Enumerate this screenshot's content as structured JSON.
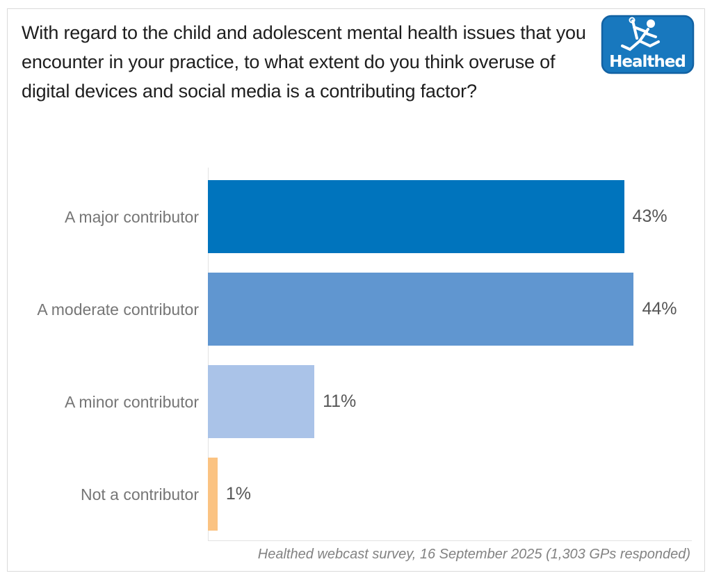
{
  "logo": {
    "text": "Healthed",
    "bg_color": "#1878be",
    "icon": "hermes-runner-icon"
  },
  "chart_data": {
    "type": "bar",
    "orientation": "horizontal",
    "title": "With regard to the child and adolescent mental health issues that you encounter in your practice, to what extent do you think overuse of digital devices and social media is a contributing factor?",
    "categories": [
      "A major contributor",
      "A moderate contributor",
      "A minor contributor",
      "Not a contributor"
    ],
    "values": [
      43,
      44,
      11,
      1
    ],
    "value_labels": [
      "43%",
      "44%",
      "11%",
      "1%"
    ],
    "bar_colors": [
      "#0074bd",
      "#6096d0",
      "#aac3e8",
      "#fbc382"
    ],
    "xlim": [
      0,
      50
    ],
    "grid": "off",
    "legend": "none",
    "source": "Healthed webcast survey, 16 September 2025 (1,303 GPs responded)"
  }
}
